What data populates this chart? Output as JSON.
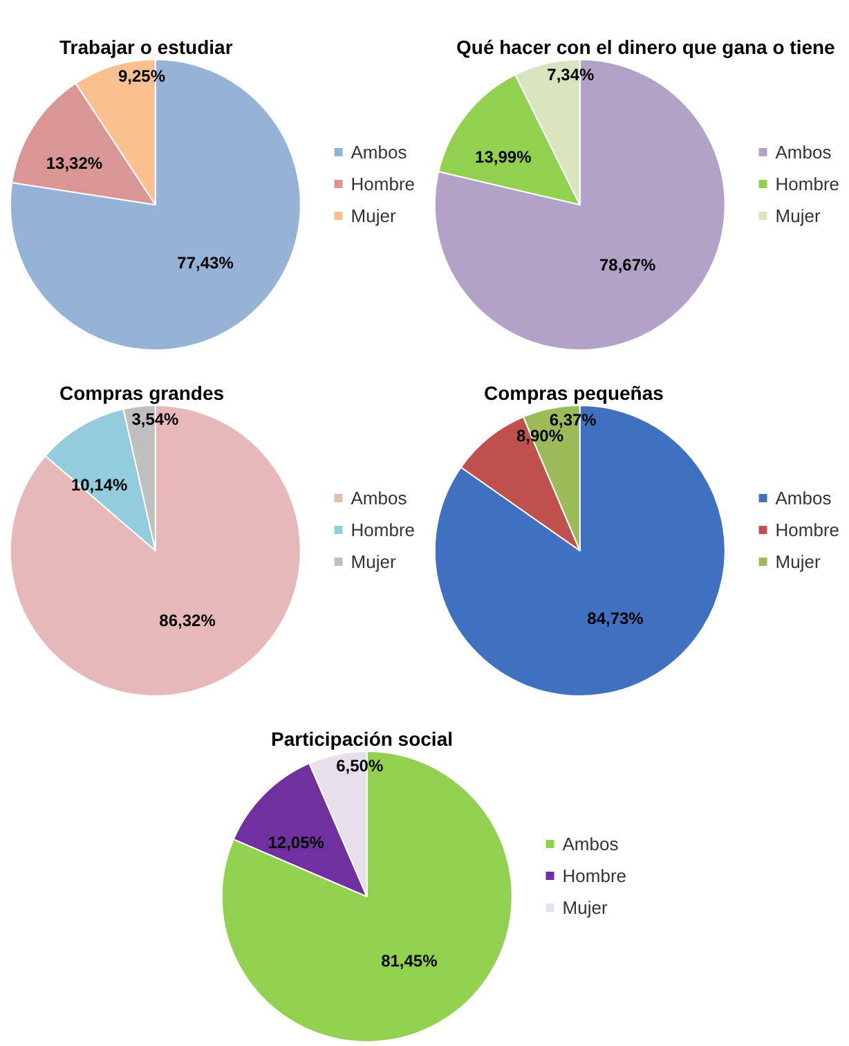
{
  "chart_data": [
    {
      "type": "pie",
      "title": "Trabajar o estudiar",
      "categories": [
        "Ambos",
        "Hombre",
        "Mujer"
      ],
      "values": [
        77.43,
        13.32,
        9.25
      ],
      "value_labels": [
        "77,43%",
        "13,32%",
        "9,25%"
      ],
      "colors": [
        "#95b3d7",
        "#d99694",
        "#fac090"
      ],
      "legend": "right"
    },
    {
      "type": "pie",
      "title": "Qué hacer con el dinero que gana o tiene",
      "categories": [
        "Ambos",
        "Hombre",
        "Mujer"
      ],
      "values": [
        78.67,
        13.99,
        7.34
      ],
      "value_labels": [
        "78,67%",
        "13,99%",
        "7,34%"
      ],
      "colors": [
        "#b3a2c7",
        "#92d050",
        "#d7e4bd"
      ],
      "legend": "right"
    },
    {
      "type": "pie",
      "title": "Compras grandes",
      "categories": [
        "Ambos",
        "Hombre",
        "Mujer"
      ],
      "values": [
        86.32,
        10.14,
        3.54
      ],
      "value_labels": [
        "86,32%",
        "10,14%",
        "3,54%"
      ],
      "colors": [
        "#e6b9b8",
        "#93cddd",
        "#bfbfbf"
      ],
      "legend": "right"
    },
    {
      "type": "pie",
      "title": "Compras pequeñas",
      "categories": [
        "Ambos",
        "Hombre",
        "Mujer"
      ],
      "values": [
        84.73,
        8.9,
        6.37
      ],
      "value_labels": [
        "84,73%",
        "8,90%",
        "6,37%"
      ],
      "colors": [
        "#4070c0",
        "#c0504d",
        "#9bbb59"
      ],
      "legend": "right"
    },
    {
      "type": "pie",
      "title": "Participación social",
      "categories": [
        "Ambos",
        "Hombre",
        "Mujer"
      ],
      "values": [
        81.45,
        12.05,
        6.5
      ],
      "value_labels": [
        "81,45%",
        "12,05%",
        "6,50%"
      ],
      "colors": [
        "#92d050",
        "#7030a0",
        "#e6e0ec"
      ],
      "legend": "right"
    }
  ]
}
